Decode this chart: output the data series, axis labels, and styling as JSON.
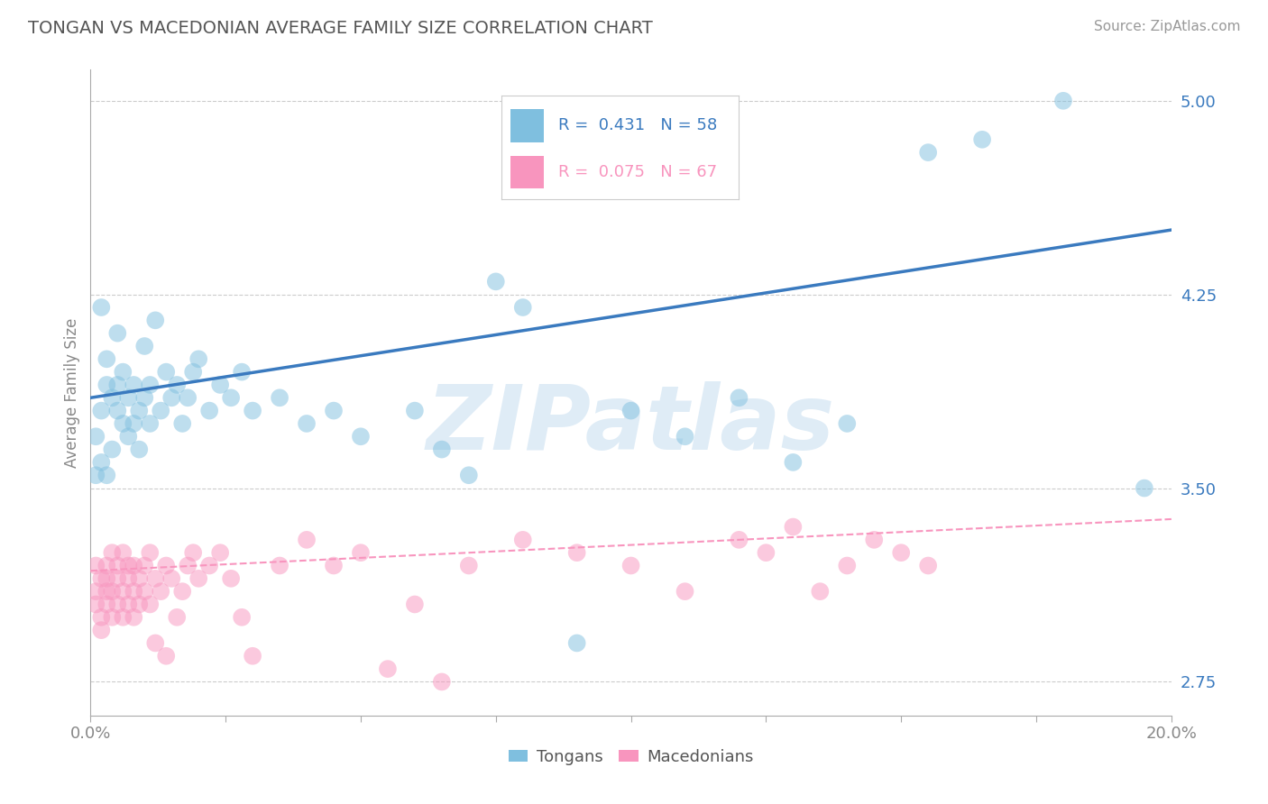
{
  "title": "TONGAN VS MACEDONIAN AVERAGE FAMILY SIZE CORRELATION CHART",
  "source_text": "Source: ZipAtlas.com",
  "ylabel": "Average Family Size",
  "xlim": [
    0.0,
    0.2
  ],
  "ylim": [
    2.62,
    5.12
  ],
  "yticks": [
    2.75,
    3.5,
    4.25,
    5.0
  ],
  "xticks": [
    0.0,
    0.025,
    0.05,
    0.075,
    0.1,
    0.125,
    0.15,
    0.175,
    0.2
  ],
  "xtick_labels_show": [
    "0.0%",
    "",
    "",
    "",
    "",
    "",
    "",
    "",
    "20.0%"
  ],
  "yticklabels_right": [
    "2.75",
    "3.50",
    "4.25",
    "5.00"
  ],
  "blue_color": "#7fbfdf",
  "pink_color": "#f895be",
  "blue_line_color": "#3a7abf",
  "pink_line_color": "#f895be",
  "legend_R_blue": "R = 0.431",
  "legend_N_blue": "N = 58",
  "legend_R_pink": "R = 0.075",
  "legend_N_pink": "N = 67",
  "legend_label_blue": "Tongans",
  "legend_label_pink": "Macedonians",
  "watermark": "ZIPatlas",
  "background_color": "#ffffff",
  "grid_color": "#cccccc",
  "title_color": "#555555",
  "blue_scatter_x": [
    0.001,
    0.001,
    0.002,
    0.002,
    0.002,
    0.003,
    0.003,
    0.003,
    0.004,
    0.004,
    0.005,
    0.005,
    0.005,
    0.006,
    0.006,
    0.007,
    0.007,
    0.008,
    0.008,
    0.009,
    0.009,
    0.01,
    0.01,
    0.011,
    0.011,
    0.012,
    0.013,
    0.014,
    0.015,
    0.016,
    0.017,
    0.018,
    0.019,
    0.02,
    0.022,
    0.024,
    0.026,
    0.028,
    0.03,
    0.035,
    0.04,
    0.045,
    0.05,
    0.06,
    0.065,
    0.07,
    0.075,
    0.08,
    0.09,
    0.1,
    0.11,
    0.12,
    0.13,
    0.14,
    0.155,
    0.165,
    0.18,
    0.195
  ],
  "blue_scatter_y": [
    3.7,
    3.55,
    3.8,
    3.6,
    4.2,
    4.0,
    3.9,
    3.55,
    3.85,
    3.65,
    3.9,
    3.8,
    4.1,
    3.75,
    3.95,
    3.85,
    3.7,
    3.75,
    3.9,
    3.8,
    3.65,
    3.85,
    4.05,
    3.75,
    3.9,
    4.15,
    3.8,
    3.95,
    3.85,
    3.9,
    3.75,
    3.85,
    3.95,
    4.0,
    3.8,
    3.9,
    3.85,
    3.95,
    3.8,
    3.85,
    3.75,
    3.8,
    3.7,
    3.8,
    3.65,
    3.55,
    4.3,
    4.2,
    2.9,
    3.8,
    3.7,
    3.85,
    3.6,
    3.75,
    4.8,
    4.85,
    5.0,
    3.5
  ],
  "pink_scatter_x": [
    0.001,
    0.001,
    0.001,
    0.002,
    0.002,
    0.002,
    0.003,
    0.003,
    0.003,
    0.003,
    0.004,
    0.004,
    0.004,
    0.005,
    0.005,
    0.005,
    0.006,
    0.006,
    0.006,
    0.007,
    0.007,
    0.007,
    0.008,
    0.008,
    0.008,
    0.009,
    0.009,
    0.01,
    0.01,
    0.011,
    0.011,
    0.012,
    0.012,
    0.013,
    0.014,
    0.014,
    0.015,
    0.016,
    0.017,
    0.018,
    0.019,
    0.02,
    0.022,
    0.024,
    0.026,
    0.028,
    0.03,
    0.035,
    0.04,
    0.045,
    0.05,
    0.055,
    0.06,
    0.065,
    0.07,
    0.08,
    0.09,
    0.1,
    0.11,
    0.12,
    0.125,
    0.13,
    0.135,
    0.14,
    0.145,
    0.15,
    0.155
  ],
  "pink_scatter_y": [
    3.2,
    3.1,
    3.05,
    3.15,
    3.0,
    2.95,
    3.2,
    3.1,
    3.05,
    3.15,
    3.25,
    3.1,
    3.0,
    3.2,
    3.15,
    3.05,
    3.25,
    3.1,
    3.0,
    3.15,
    3.2,
    3.05,
    3.1,
    3.2,
    3.0,
    3.15,
    3.05,
    3.2,
    3.1,
    3.25,
    3.05,
    3.15,
    2.9,
    3.1,
    3.2,
    2.85,
    3.15,
    3.0,
    3.1,
    3.2,
    3.25,
    3.15,
    3.2,
    3.25,
    3.15,
    3.0,
    2.85,
    3.2,
    3.3,
    3.2,
    3.25,
    2.8,
    3.05,
    2.75,
    3.2,
    3.3,
    3.25,
    3.2,
    3.1,
    3.3,
    3.25,
    3.35,
    3.1,
    3.2,
    3.3,
    3.25,
    3.2
  ],
  "blue_trendline_x": [
    0.0,
    0.2
  ],
  "blue_trendline_y": [
    3.85,
    4.5
  ],
  "pink_trendline_x": [
    0.0,
    0.2
  ],
  "pink_trendline_y": [
    3.18,
    3.38
  ]
}
